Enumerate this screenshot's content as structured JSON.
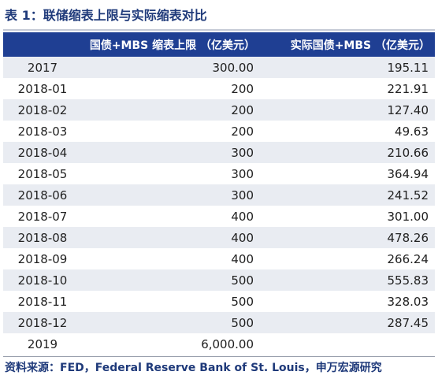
{
  "title": "表 1：联储缩表上限与实际缩表对比",
  "table": {
    "headers": [
      "",
      "国债+MBS 缩表上限 （亿美元）",
      "实际国债+MBS （亿美元）"
    ],
    "rows": [
      [
        "2017",
        "300.00",
        "195.11"
      ],
      [
        "2018-01",
        "200",
        "221.91"
      ],
      [
        "2018-02",
        "200",
        "127.40"
      ],
      [
        "2018-03",
        "200",
        "49.63"
      ],
      [
        "2018-04",
        "300",
        "210.66"
      ],
      [
        "2018-05",
        "300",
        "364.94"
      ],
      [
        "2018-06",
        "300",
        "241.52"
      ],
      [
        "2018-07",
        "400",
        "301.00"
      ],
      [
        "2018-08",
        "400",
        "478.26"
      ],
      [
        "2018-09",
        "400",
        "266.24"
      ],
      [
        "2018-10",
        "500",
        "555.83"
      ],
      [
        "2018-11",
        "500",
        "328.03"
      ],
      [
        "2018-12",
        "500",
        "287.45"
      ],
      [
        "2019",
        "6,000.00",
        ""
      ]
    ]
  },
  "source": "资料来源：FED，Federal Reserve Bank of St. Louis，申万宏源研究",
  "colors": {
    "header_bg": "#1f3f93",
    "header_text": "#ffffff",
    "stripe": "#e9ecf2",
    "title_text": "#1f3a7a"
  }
}
